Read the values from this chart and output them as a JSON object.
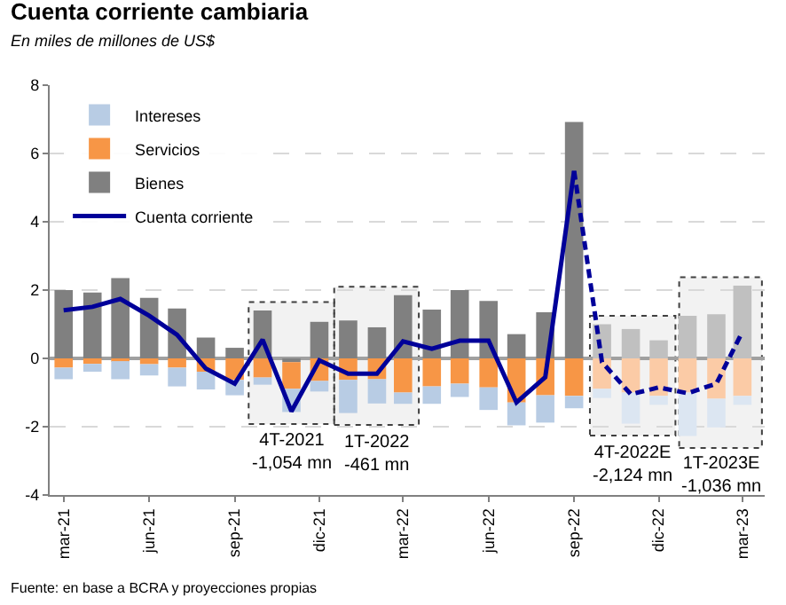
{
  "chart_data": {
    "type": "bar",
    "title": "Cuenta corriente cambiaria",
    "subtitle": "En miles de millones de US$",
    "x": [
      "2021-03",
      "2021-04",
      "2021-05",
      "2021-06",
      "2021-07",
      "2021-08",
      "2021-09",
      "2021-10",
      "2021-11",
      "2021-12",
      "2022-01",
      "2022-02",
      "2022-03",
      "2022-04",
      "2022-05",
      "2022-06",
      "2022-07",
      "2022-08",
      "2022-09",
      "2022-10",
      "2022-11",
      "2022-12",
      "2023-01",
      "2023-02",
      "2023-03"
    ],
    "stacked": true,
    "series": [
      {
        "name": "Bienes",
        "color": "#808080",
        "colors": [
          "#808080",
          "#808080",
          "#808080",
          "#808080",
          "#808080",
          "#808080",
          "#808080",
          "#808080",
          "#808080",
          "#808080",
          "#808080",
          "#808080",
          "#808080",
          "#808080",
          "#808080",
          "#808080",
          "#808080",
          "#808080",
          "#808080",
          "#c0c0c0",
          "#c0c0c0",
          "#c0c0c0",
          "#c0c0c0",
          "#c0c0c0",
          "#c0c0c0"
        ],
        "values": [
          2.0,
          1.93,
          2.35,
          1.77,
          1.46,
          0.61,
          0.31,
          1.4,
          -0.11,
          1.07,
          1.11,
          0.91,
          1.85,
          1.43,
          2.0,
          1.68,
          0.71,
          1.35,
          6.92,
          1.0,
          0.86,
          0.53,
          1.25,
          1.29,
          2.13
        ]
      },
      {
        "name": "Servicios",
        "color": "#f79646",
        "colors": [
          "#f79646",
          "#f79646",
          "#f79646",
          "#f79646",
          "#f79646",
          "#f79646",
          "#f79646",
          "#f79646",
          "#f79646",
          "#f79646",
          "#f79646",
          "#f79646",
          "#f79646",
          "#f79646",
          "#f79646",
          "#f79646",
          "#f79646",
          "#f79646",
          "#f79646",
          "#fbcba6",
          "#fbcba6",
          "#fbcba6",
          "#fbcba6",
          "#fbcba6",
          "#fbcba6"
        ],
        "values": [
          -0.27,
          -0.16,
          -0.08,
          -0.17,
          -0.27,
          -0.39,
          -0.63,
          -0.56,
          -0.78,
          -0.66,
          -0.63,
          -0.61,
          -1.0,
          -0.82,
          -0.74,
          -0.85,
          -1.29,
          -1.08,
          -1.1,
          -0.89,
          -1.0,
          -1.1,
          -1.0,
          -1.18,
          -1.1
        ]
      },
      {
        "name": "Intereses",
        "color": "#b8cce4",
        "colors": [
          "#b8cce4",
          "#b8cce4",
          "#b8cce4",
          "#b8cce4",
          "#b8cce4",
          "#b8cce4",
          "#b8cce4",
          "#b8cce4",
          "#b8cce4",
          "#b8cce4",
          "#b8cce4",
          "#b8cce4",
          "#b8cce4",
          "#b8cce4",
          "#b8cce4",
          "#b8cce4",
          "#b8cce4",
          "#b8cce4",
          "#b8cce4",
          "#dce6f2",
          "#dce6f2",
          "#dce6f2",
          "#dce6f2",
          "#dce6f2",
          "#dce6f2"
        ],
        "values": [
          -0.34,
          -0.23,
          -0.53,
          -0.33,
          -0.55,
          -0.52,
          -0.45,
          -0.21,
          -0.68,
          -0.31,
          -0.97,
          -0.71,
          -0.33,
          -0.51,
          -0.39,
          -0.66,
          -0.67,
          -0.8,
          -0.36,
          -0.27,
          -0.91,
          -0.26,
          -1.27,
          -0.84,
          -0.26
        ]
      },
      {
        "name": "Cuenta corriente",
        "type": "line",
        "color": "#000099",
        "line_style": "solid",
        "values": [
          1.41,
          1.51,
          1.74,
          1.25,
          0.69,
          -0.3,
          -0.74,
          0.55,
          -1.55,
          -0.06,
          -0.45,
          -0.45,
          0.5,
          0.28,
          0.52,
          0.52,
          -1.29,
          -0.55,
          5.49,
          null,
          null,
          null,
          null,
          null,
          null
        ]
      },
      {
        "type": "line",
        "color": "#000099",
        "line_style": "dashed",
        "values": [
          null,
          null,
          null,
          null,
          null,
          null,
          null,
          null,
          null,
          null,
          null,
          null,
          null,
          null,
          null,
          null,
          null,
          null,
          5.49,
          -0.11,
          -1.05,
          -0.85,
          -1.02,
          -0.74,
          0.78
        ]
      }
    ],
    "xlim": [
      "2021-02-14",
      "2023-03-25"
    ],
    "xticks": [
      {
        "value": "2021-03",
        "label": "mar-21"
      },
      {
        "value": "2021-06",
        "label": "jun-21"
      },
      {
        "value": "2021-09",
        "label": "sep-21"
      },
      {
        "value": "2021-12",
        "label": "dic-21"
      },
      {
        "value": "2022-03",
        "label": "mar-22"
      },
      {
        "value": "2022-06",
        "label": "jun-22"
      },
      {
        "value": "2022-09",
        "label": "sep-22"
      },
      {
        "value": "2022-12",
        "label": "dic-22"
      },
      {
        "value": "2023-03",
        "label": "mar-23"
      }
    ],
    "ylim": [
      -4,
      8
    ],
    "yticks": [
      -4,
      -2,
      0,
      2,
      4,
      6,
      8
    ],
    "grid": "y",
    "legend": "top left",
    "marker": "none",
    "bands": [
      {
        "axis": "x",
        "from": "2021-09-16",
        "to": "2021-12-17",
        "label": "4T-2021\n-1,054 mn"
      },
      {
        "axis": "x",
        "from": "2021-12-17",
        "to": "2022-03-18",
        "label": "1T-2022\n-461 mn"
      },
      {
        "axis": "x",
        "from": "2022-09-18",
        "to": "2022-12-19",
        "label": "4T-2022E\n-2,124 mn"
      },
      {
        "axis": "x",
        "from": "2022-12-23",
        "to": "2023-03-22",
        "label": "1T-2023E\n-1,036 mn"
      }
    ],
    "annotations": [
      "Fuente: en base a BCRA y proyecciones propias"
    ]
  }
}
